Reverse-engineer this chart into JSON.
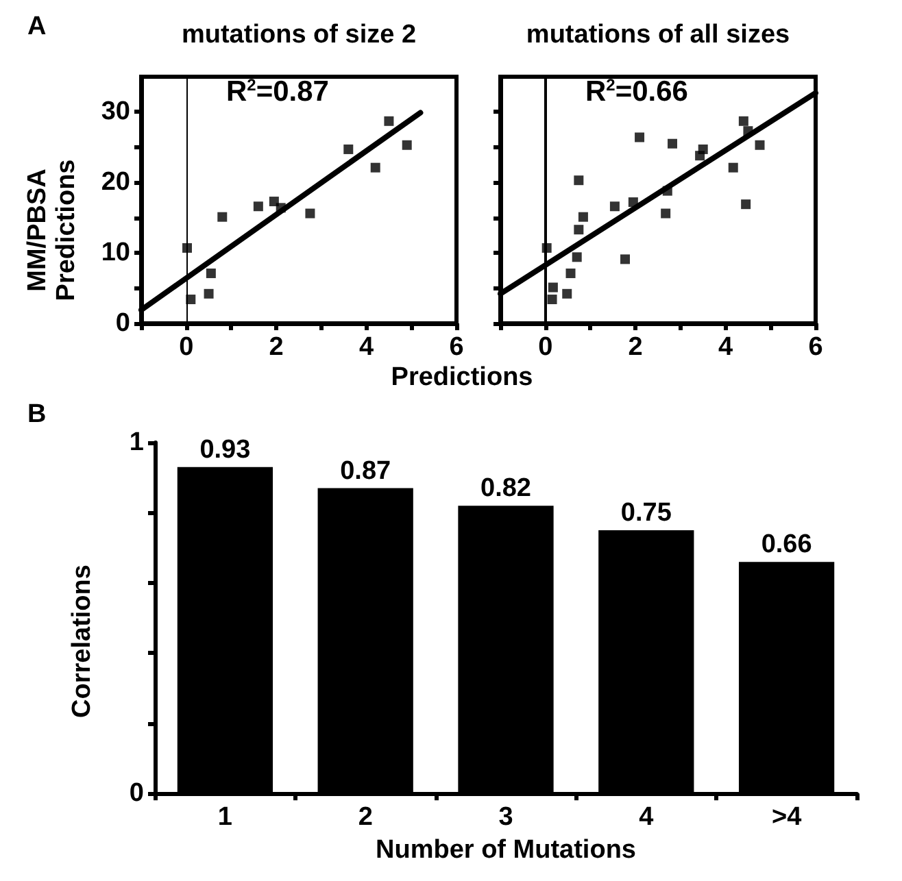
{
  "chart_data": [
    {
      "type": "scatter",
      "title": "mutations of size 2",
      "ylabel": "MM/PBSA\nPredictions",
      "xlabel": "Predictions",
      "annotations": [
        "A",
        "R$^{2}$=0.87"
      ],
      "marker": "square",
      "grid": false,
      "xlim": [
        -1,
        6
      ],
      "xticks": [
        {
          "value": -1,
          "label": null
        },
        0,
        {
          "value": 1,
          "label": null
        },
        2,
        {
          "value": 3,
          "label": null
        },
        4,
        {
          "value": 5,
          "label": null
        },
        6
      ],
      "ylim": [
        0,
        35
      ],
      "yticks": [
        0,
        {
          "value": 5,
          "label": null
        },
        10,
        {
          "value": 15,
          "label": null
        },
        20,
        {
          "value": 25,
          "label": null
        },
        30
      ],
      "series": [
        {
          "color": "#000000",
          "x": [
            0.02,
            0.1,
            0.5,
            0.55,
            0.8,
            1.6,
            1.95,
            2.1,
            2.75,
            3.6,
            4.2,
            4.5,
            4.9
          ],
          "values": [
            10.7,
            3.4,
            4.2,
            7.1,
            15.1,
            16.6,
            17.3,
            16.4,
            15.6,
            24.7,
            22.1,
            28.7,
            25.3
          ]
        },
        {
          "type": "line",
          "marker": "none",
          "color": "#000000",
          "x": [
            -1,
            5.2
          ],
          "values": [
            1.9,
            29.9
          ]
        }
      ],
      "ref_lines": [
        {
          "axis": "x",
          "value": 0,
          "color": "#000000"
        }
      ]
    },
    {
      "type": "scatter",
      "title": "mutations of all sizes",
      "annotations": [
        "R$^{2}$=0.66"
      ],
      "marker": "square",
      "grid": false,
      "tick_labels": "x",
      "xlim": [
        -1,
        6
      ],
      "xticks": [
        {
          "value": -1,
          "label": null
        },
        0,
        {
          "value": 1,
          "label": null
        },
        2,
        {
          "value": 3,
          "label": null
        },
        4,
        {
          "value": 5,
          "label": null
        },
        6
      ],
      "ylim": [
        0,
        35
      ],
      "yticks": [
        0,
        {
          "value": 5,
          "label": null
        },
        10,
        {
          "value": 15,
          "label": null
        },
        20,
        {
          "value": 25,
          "label": null
        },
        30
      ],
      "series": [
        {
          "color": "#000000",
          "x": [
            0.03,
            0.17,
            0.15,
            0.48,
            0.56,
            0.7,
            0.74,
            0.74,
            0.84,
            1.54,
            1.77,
            1.95,
            2.09,
            2.67,
            2.71,
            2.82,
            3.43,
            3.5,
            4.17,
            4.4,
            4.45,
            4.5,
            4.76
          ],
          "values": [
            10.7,
            5.1,
            3.4,
            4.2,
            7.1,
            9.4,
            13.3,
            20.3,
            15.1,
            16.6,
            9.1,
            17.2,
            26.4,
            15.6,
            18.8,
            25.5,
            23.8,
            24.7,
            22.1,
            28.7,
            16.9,
            27.3,
            25.3
          ]
        },
        {
          "type": "line",
          "marker": "none",
          "color": "#000000",
          "x": [
            -1,
            6
          ],
          "values": [
            4.2,
            32.7
          ]
        }
      ],
      "ref_lines": [
        {
          "axis": "x",
          "value": 0,
          "color": "#000000"
        }
      ]
    },
    {
      "type": "bar",
      "ylabel": "Correlations",
      "xlabel": "Number of Mutations",
      "annotations": [
        "B"
      ],
      "categories": [
        "1",
        "2",
        "3",
        "4",
        ">4"
      ],
      "values": [
        0.93,
        0.87,
        0.82,
        0.75,
        0.66
      ],
      "color": "#000000",
      "data_labels": true,
      "grid": false,
      "ylim": [
        0,
        1
      ],
      "yticks": [
        0,
        {
          "value": 0.2,
          "label": null
        },
        {
          "value": 0.4,
          "label": null
        },
        {
          "value": 0.6,
          "label": null
        },
        {
          "value": 0.8,
          "label": null
        },
        1
      ]
    }
  ]
}
